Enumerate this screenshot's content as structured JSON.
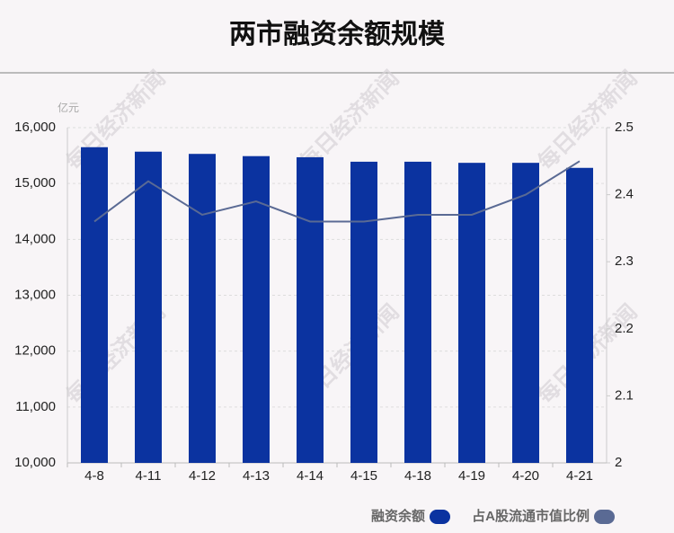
{
  "chart_data": {
    "type": "bar-line",
    "title": "两市融资余额规模",
    "watermark": "每日经济新闻",
    "y_unit": "亿元",
    "categories": [
      "4-8",
      "4-11",
      "4-12",
      "4-13",
      "4-14",
      "4-15",
      "4-18",
      "4-19",
      "4-20",
      "4-21"
    ],
    "series": [
      {
        "name": "融资余额",
        "type": "bar",
        "color": "#0b33a0",
        "values": [
          15650,
          15570,
          15530,
          15490,
          15470,
          15390,
          15390,
          15370,
          15370,
          15280
        ]
      },
      {
        "name": "占A股流通市值比例",
        "type": "line",
        "axis": "y2",
        "color": "#5a6a94",
        "values": [
          2.36,
          2.42,
          2.37,
          2.39,
          2.36,
          2.36,
          2.37,
          2.37,
          2.4,
          2.45
        ]
      }
    ],
    "ylim": [
      10000,
      16000
    ],
    "yticks": [
      {
        "value": 10000,
        "label": "10,000"
      },
      {
        "value": 11000,
        "label": "11,000"
      },
      {
        "value": 12000,
        "label": "12,000"
      },
      {
        "value": 13000,
        "label": "13,000"
      },
      {
        "value": 14000,
        "label": "14,000"
      },
      {
        "value": 15000,
        "label": "15,000"
      },
      {
        "value": 16000,
        "label": "16,000"
      }
    ],
    "y2lim": [
      2,
      2.5
    ],
    "y2ticks": [
      2,
      2.1,
      2.2,
      2.3,
      2.4,
      2.5
    ],
    "grid": true
  }
}
